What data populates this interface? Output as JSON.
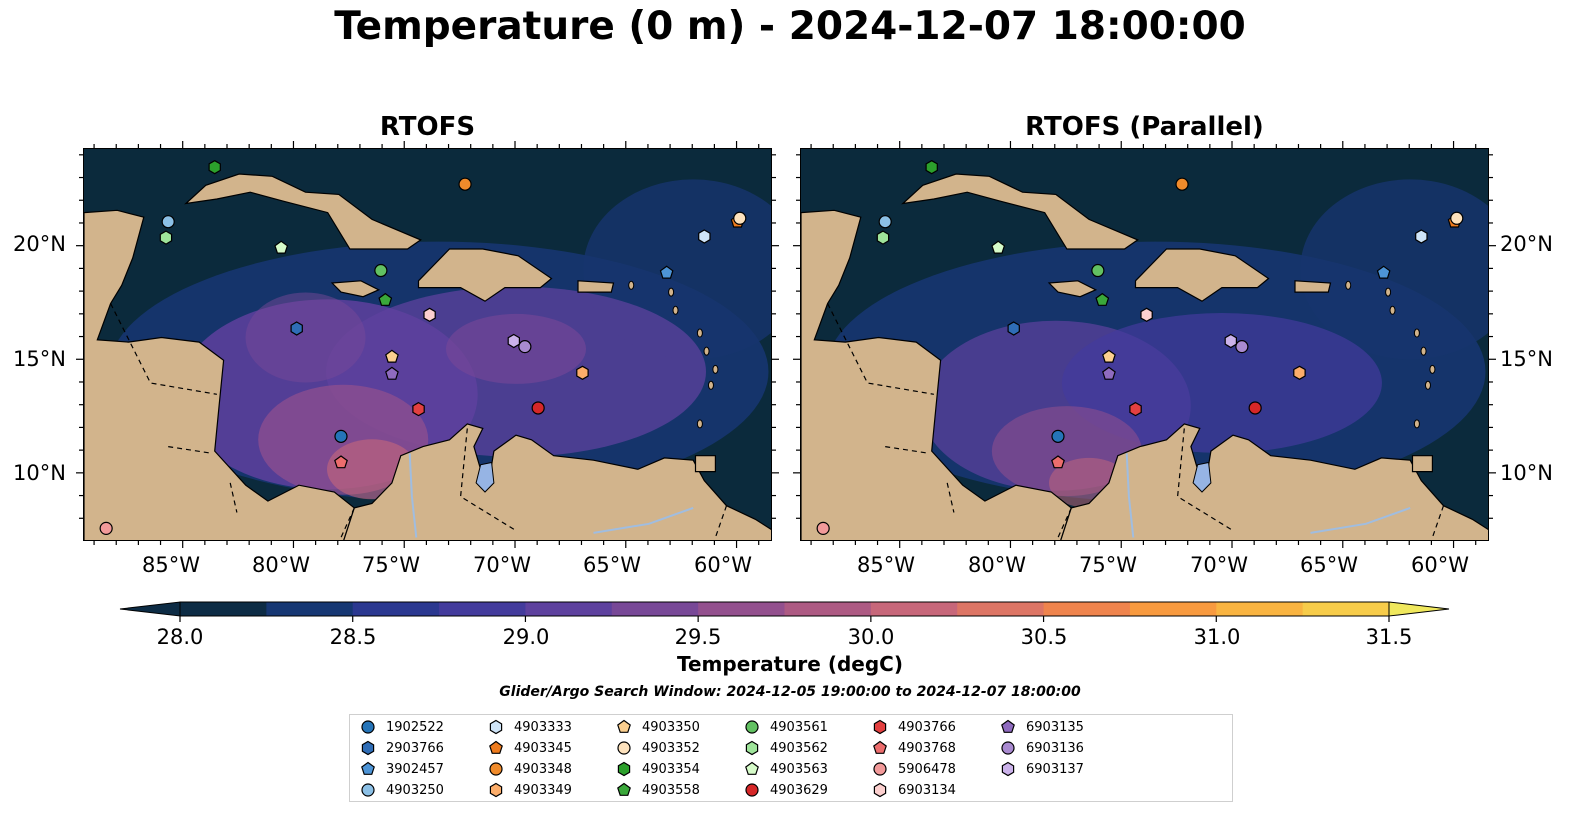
{
  "title": "Temperature (0 m) - 2024-12-07 18:00:00",
  "panels": [
    {
      "title": "RTOFS"
    },
    {
      "title": "RTOFS (Parallel)"
    }
  ],
  "axes": {
    "lon_labels": [
      "85°W",
      "80°W",
      "75°W",
      "70°W",
      "65°W",
      "60°W"
    ],
    "lat_labels": [
      "20°N",
      "15°N",
      "10°N"
    ]
  },
  "colorbar": {
    "label": "Temperature (degC)",
    "ticks": [
      "28.0",
      "28.5",
      "29.0",
      "29.5",
      "30.0",
      "30.5",
      "31.0",
      "31.5"
    ],
    "colors": [
      "#0d2c45",
      "#163773",
      "#2b3890",
      "#433b9c",
      "#5e419e",
      "#784897",
      "#93508e",
      "#ad5a83",
      "#c7677a",
      "#dd7565",
      "#ef844d",
      "#f89a3f",
      "#f9b441",
      "#f7cc4a",
      "#f0e85d"
    ]
  },
  "search_window": "Glider/Argo Search Window: 2024-12-05 19:00:00 to 2024-12-07 18:00:00",
  "map_colors": {
    "ocean_deep": "#0b2a3c",
    "ocean": "#16356e",
    "land": "#d2b48c",
    "lake": "#96b4e4"
  },
  "legend": [
    {
      "id": "1902522",
      "marker": "circle",
      "color": "#2574b8"
    },
    {
      "id": "2903766",
      "marker": "hexagon",
      "color": "#2f6db6"
    },
    {
      "id": "3902457",
      "marker": "pentagon",
      "color": "#4d94d6"
    },
    {
      "id": "4903250",
      "marker": "circle",
      "color": "#8cc0e6"
    },
    {
      "id": "4903333",
      "marker": "hexagon",
      "color": "#cfe4f7"
    },
    {
      "id": "4903345",
      "marker": "pentagon",
      "color": "#ee7b1d"
    },
    {
      "id": "4903348",
      "marker": "circle",
      "color": "#f08b2b"
    },
    {
      "id": "4903349",
      "marker": "hexagon",
      "color": "#fcad6a"
    },
    {
      "id": "4903350",
      "marker": "pentagon",
      "color": "#fbcf8f"
    },
    {
      "id": "4903352",
      "marker": "circle",
      "color": "#fde2bd"
    },
    {
      "id": "4903354",
      "marker": "hexagon",
      "color": "#2ca02c"
    },
    {
      "id": "4903558",
      "marker": "pentagon",
      "color": "#3aa83a"
    },
    {
      "id": "4903561",
      "marker": "circle",
      "color": "#62c162"
    },
    {
      "id": "4903562",
      "marker": "hexagon",
      "color": "#9ee49a"
    },
    {
      "id": "4903563",
      "marker": "pentagon",
      "color": "#d6fbc9"
    },
    {
      "id": "4903629",
      "marker": "circle",
      "color": "#d62728"
    },
    {
      "id": "4903766",
      "marker": "hexagon",
      "color": "#e34040"
    },
    {
      "id": "4903768",
      "marker": "pentagon",
      "color": "#ec6d6d"
    },
    {
      "id": "5906478",
      "marker": "circle",
      "color": "#f29a9a"
    },
    {
      "id": "6903134",
      "marker": "hexagon",
      "color": "#fcd0cf"
    },
    {
      "id": "6903135",
      "marker": "pentagon",
      "color": "#8f6bbf"
    },
    {
      "id": "6903136",
      "marker": "circle",
      "color": "#a98ad0"
    },
    {
      "id": "6903137",
      "marker": "hexagon",
      "color": "#cbb2ea"
    }
  ],
  "floats": [
    {
      "id": "1902522",
      "lon": -77.9,
      "lat": 11.65
    },
    {
      "id": "2903766",
      "lon": -79.9,
      "lat": 16.4
    },
    {
      "id": "3902457",
      "lon": -63.2,
      "lat": 18.85
    },
    {
      "id": "4903250",
      "lon": -85.7,
      "lat": 21.1
    },
    {
      "id": "4903333",
      "lon": -61.5,
      "lat": 20.45
    },
    {
      "id": "4903345",
      "lon": -60.0,
      "lat": 21.1
    },
    {
      "id": "4903348",
      "lon": -72.3,
      "lat": 22.75
    },
    {
      "id": "4903349",
      "lon": -67.0,
      "lat": 14.45
    },
    {
      "id": "4903350",
      "lon": -75.6,
      "lat": 15.15
    },
    {
      "id": "4903352",
      "lon": -59.9,
      "lat": 21.25
    },
    {
      "id": "4903354",
      "lon": -83.6,
      "lat": 23.5
    },
    {
      "id": "4903558",
      "lon": -75.9,
      "lat": 17.65
    },
    {
      "id": "4903561",
      "lon": -76.1,
      "lat": 18.95
    },
    {
      "id": "4903562",
      "lon": -85.8,
      "lat": 20.4
    },
    {
      "id": "4903563",
      "lon": -80.6,
      "lat": 19.95
    },
    {
      "id": "4903629",
      "lon": -69.0,
      "lat": 12.9
    },
    {
      "id": "4903766",
      "lon": -74.4,
      "lat": 12.85
    },
    {
      "id": "4903768",
      "lon": -77.9,
      "lat": 10.5
    },
    {
      "id": "5906478",
      "lon": -88.5,
      "lat": 7.6
    },
    {
      "id": "6903134",
      "lon": -73.9,
      "lat": 17.0
    },
    {
      "id": "6903135",
      "lon": -75.6,
      "lat": 14.4
    },
    {
      "id": "6903136",
      "lon": -69.6,
      "lat": 15.6
    },
    {
      "id": "6903137",
      "lon": -70.1,
      "lat": 15.85
    }
  ]
}
